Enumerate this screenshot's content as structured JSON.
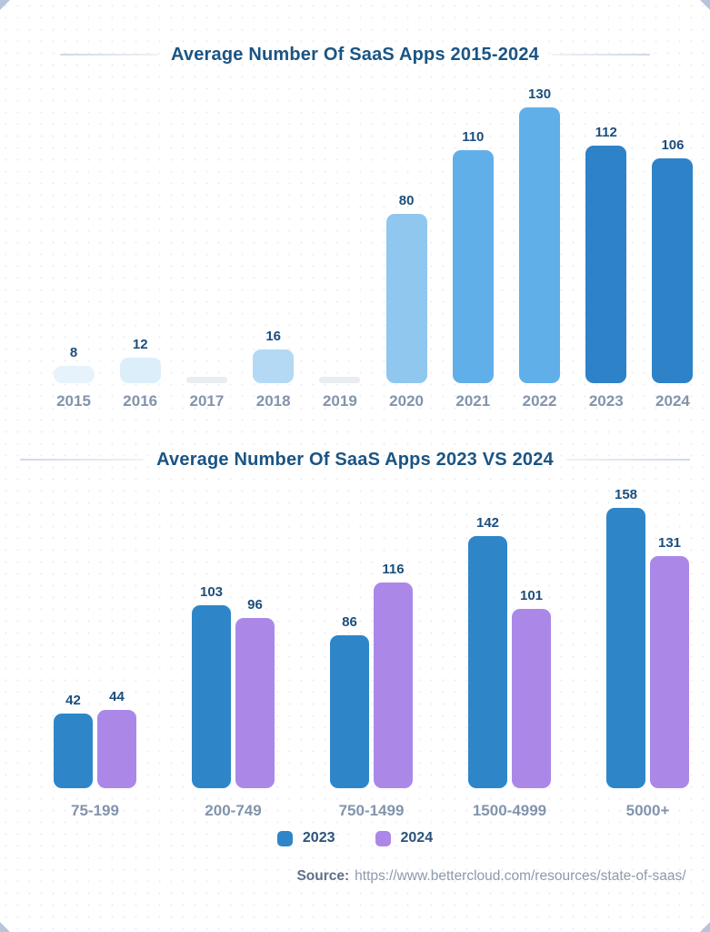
{
  "page": {
    "corner_decoration_color": "#b7c4da",
    "background_dot_color": "#e8ecf4",
    "title_color": "#1a5484",
    "value_label_color": "#1c4e7c",
    "axis_label_color": "#8294ac"
  },
  "chart_data": [
    {
      "type": "bar",
      "title": "Average Number Of SaaS Apps 2015-2024",
      "categories": [
        "2015",
        "2016",
        "2017",
        "2018",
        "2019",
        "2020",
        "2021",
        "2022",
        "2023",
        "2024"
      ],
      "values": [
        8,
        12,
        null,
        16,
        null,
        80,
        110,
        130,
        112,
        106
      ],
      "bar_colors": [
        "#e7f3fc",
        "#ddeefb",
        "#e9ecf1",
        "#b4d9f4",
        "#e9ecf1",
        "#8fc7ef",
        "#61afe9",
        "#61afe9",
        "#2e82c8",
        "#2e82c8"
      ],
      "sliver_color": "#e9ecf1",
      "value_labels": true,
      "grid": false,
      "ylim": [
        0,
        140
      ]
    },
    {
      "type": "grouped-bar",
      "title": "Average Number Of SaaS Apps 2023 VS 2024",
      "categories": [
        "75-199",
        "200-749",
        "750-1499",
        "1500-4999",
        "5000+"
      ],
      "series": [
        {
          "name": "2023",
          "color": "#2e86c9",
          "values": [
            42,
            103,
            86,
            142,
            158
          ]
        },
        {
          "name": "2024",
          "color": "#ab88e8",
          "values": [
            44,
            96,
            116,
            101,
            131
          ]
        }
      ],
      "value_labels": true,
      "grid": false,
      "ylim": [
        0,
        170
      ],
      "legend_position": "bottom"
    }
  ],
  "legend": {
    "items": [
      {
        "label": "2023",
        "color": "#2e86c9"
      },
      {
        "label": "2024",
        "color": "#ab88e8"
      }
    ]
  },
  "source": {
    "label": "Source:",
    "url": "https://www.bettercloud.com/resources/state-of-saas/"
  }
}
